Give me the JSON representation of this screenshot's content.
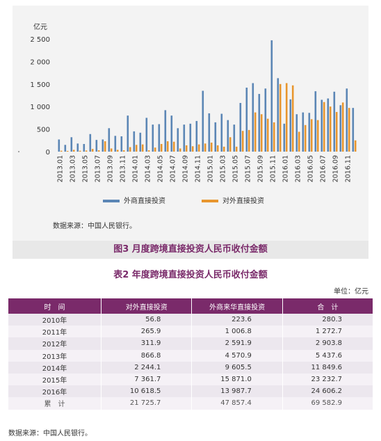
{
  "figure": {
    "caption": "图3   月度跨境直接投资人民币收付金额",
    "source_note": "数据来源：中国人民银行。"
  },
  "chart_data": {
    "type": "bar",
    "y_unit_label": "亿元",
    "ylim": [
      0,
      2500
    ],
    "y_ticks": [
      0,
      500,
      1000,
      1500,
      2000,
      2500
    ],
    "y_tick_labels": [
      "0",
      "500",
      "1 000",
      "1 500",
      "2 000",
      "2 500"
    ],
    "categories": [
      "2013.01",
      "2013.02",
      "2013.03",
      "2013.04",
      "2013.05",
      "2013.06",
      "2013.07",
      "2013.08",
      "2013.09",
      "2013.10",
      "2013.11",
      "2013.12",
      "2014.01",
      "2014.02",
      "2014.03",
      "2014.04",
      "2014.05",
      "2014.06",
      "2014.07",
      "2014.08",
      "2014.09",
      "2014.10",
      "2014.11",
      "2014.12",
      "2015.01",
      "2015.02",
      "2015.03",
      "2015.04",
      "2015.05",
      "2015.06",
      "2015.07",
      "2015.08",
      "2015.09",
      "2015.10",
      "2015.11",
      "2015.12",
      "2016.01",
      "2016.02",
      "2016.03",
      "2016.04",
      "2016.05",
      "2016.06",
      "2016.07",
      "2016.08",
      "2016.09",
      "2016.10",
      "2016.11",
      "2016.12"
    ],
    "x_tick_labels": [
      "2013.01",
      "2013.03",
      "2013.05",
      "2013.07",
      "2013.09",
      "2013.11",
      "2014.01",
      "2014.03",
      "2014.05",
      "2014.07",
      "2014.09",
      "2014.11",
      "2015.01",
      "2015.03",
      "2015.05",
      "2015.07",
      "2015.09",
      "2015.11",
      "2016.01",
      "2016.03",
      "2016.05",
      "2016.07",
      "2016.09",
      "2016.11"
    ],
    "series": [
      {
        "name": "外商直接投资",
        "color": "#5b86b5",
        "values": [
          270,
          150,
          320,
          180,
          170,
          390,
          260,
          270,
          520,
          350,
          340,
          800,
          450,
          420,
          750,
          600,
          610,
          920,
          800,
          520,
          600,
          620,
          680,
          1350,
          850,
          650,
          840,
          700,
          600,
          1080,
          1420,
          1520,
          1280,
          1400,
          2470,
          1630,
          620,
          1160,
          830,
          870,
          860,
          1340,
          1150,
          1180,
          1330,
          1030,
          1400,
          970
        ]
      },
      {
        "name": "对外直接投资",
        "color": "#e8962e",
        "values": [
          20,
          15,
          40,
          20,
          25,
          60,
          30,
          230,
          70,
          40,
          30,
          100,
          150,
          160,
          30,
          90,
          170,
          230,
          220,
          70,
          140,
          120,
          160,
          180,
          200,
          140,
          110,
          320,
          110,
          460,
          480,
          870,
          830,
          730,
          650,
          1500,
          1520,
          1470,
          440,
          590,
          720,
          700,
          1100,
          1000,
          880,
          1090,
          970,
          250
        ]
      }
    ],
    "legend_position": "bottom"
  },
  "table": {
    "title": "表2   年度跨境直接投资人民币收付金额",
    "unit": "单位：亿元",
    "headers": [
      "时　间",
      "对外直接投资",
      "外商来华直接投资",
      "合　计"
    ],
    "rows": [
      [
        "2010年",
        "56.8",
        "223.6",
        "280.3"
      ],
      [
        "2011年",
        "265.9",
        "1 006.8",
        "1 272.7"
      ],
      [
        "2012年",
        "311.9",
        "2 591.9",
        "2 903.8"
      ],
      [
        "2013年",
        "866.8",
        "4 570.9",
        "5 437.6"
      ],
      [
        "2014年",
        "2 244.1",
        "9 605.5",
        "11 849.6"
      ],
      [
        "2015年",
        "7 361.7",
        "15 871.0",
        "23 232.7"
      ],
      [
        "2016年",
        "10 618.5",
        "13 987.7",
        "24 606.2"
      ],
      [
        "累　计",
        "21 725.7",
        "47 857.4",
        "69 582.9"
      ]
    ],
    "source_note": "数据来源：中国人民银行。"
  }
}
